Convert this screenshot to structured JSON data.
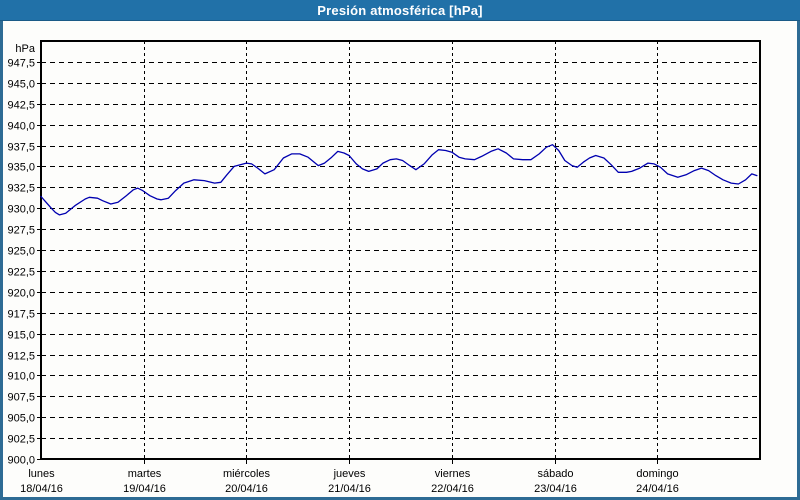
{
  "window": {
    "title": "Presión atmosférica [hPa]"
  },
  "colors": {
    "titlebar": "#2171a8",
    "frame": "#2e6b94",
    "plot_background": "#fdfdfb",
    "axis": "#000000",
    "grid": "#000000",
    "line": "#0000b0",
    "label_text": "#000000",
    "title_text": "#ffffff"
  },
  "chart_data": {
    "type": "line",
    "title": "Presión atmosférica [hPa]",
    "unit_label": "hPa",
    "ylabel": "hPa",
    "ylim": [
      900,
      950
    ],
    "ytick_step": 2.5,
    "grid": true,
    "legend": false,
    "yticks": [
      {
        "label": "947,5",
        "value": 947.5
      },
      {
        "label": "945,0",
        "value": 945.0
      },
      {
        "label": "942,5",
        "value": 942.5
      },
      {
        "label": "940,0",
        "value": 940.0
      },
      {
        "label": "937,5",
        "value": 937.5
      },
      {
        "label": "935,0",
        "value": 935.0
      },
      {
        "label": "932,5",
        "value": 932.5
      },
      {
        "label": "930,0",
        "value": 930.0
      },
      {
        "label": "927,5",
        "value": 927.5
      },
      {
        "label": "925,0",
        "value": 925.0
      },
      {
        "label": "922,5",
        "value": 922.5
      },
      {
        "label": "920,0",
        "value": 920.0
      },
      {
        "label": "917,5",
        "value": 917.5
      },
      {
        "label": "915,0",
        "value": 915.0
      },
      {
        "label": "912,5",
        "value": 912.5
      },
      {
        "label": "910,0",
        "value": 910.0
      },
      {
        "label": "907,5",
        "value": 907.5
      },
      {
        "label": "905,0",
        "value": 905.0
      },
      {
        "label": "902,5",
        "value": 902.5
      },
      {
        "label": "900,0",
        "value": 900.0
      }
    ],
    "x_categories": [
      {
        "day": "lunes",
        "date": "18/04/16"
      },
      {
        "day": "martes",
        "date": "19/04/16"
      },
      {
        "day": "miércoles",
        "date": "20/04/16"
      },
      {
        "day": "jueves",
        "date": "21/04/16"
      },
      {
        "day": "viernes",
        "date": "22/04/16"
      },
      {
        "day": "sábado",
        "date": "23/04/16"
      },
      {
        "day": "domingo",
        "date": "24/04/16"
      }
    ],
    "series": [
      {
        "name": "Presión atmosférica",
        "color": "#0000b0",
        "points": [
          [
            0.0,
            931.4
          ],
          [
            0.05,
            930.7
          ],
          [
            0.1,
            930.0
          ],
          [
            0.14,
            929.5
          ],
          [
            0.18,
            929.2
          ],
          [
            0.24,
            929.4
          ],
          [
            0.33,
            930.3
          ],
          [
            0.43,
            931.1
          ],
          [
            0.47,
            931.3
          ],
          [
            0.55,
            931.2
          ],
          [
            0.6,
            930.9
          ],
          [
            0.68,
            930.5
          ],
          [
            0.75,
            930.7
          ],
          [
            0.83,
            931.5
          ],
          [
            0.9,
            932.2
          ],
          [
            0.94,
            932.4
          ],
          [
            0.99,
            932.1
          ],
          [
            1.06,
            931.5
          ],
          [
            1.13,
            931.1
          ],
          [
            1.17,
            931.0
          ],
          [
            1.24,
            931.2
          ],
          [
            1.31,
            932.1
          ],
          [
            1.39,
            933.0
          ],
          [
            1.49,
            933.4
          ],
          [
            1.59,
            933.3
          ],
          [
            1.69,
            933.0
          ],
          [
            1.75,
            933.1
          ],
          [
            1.81,
            934.0
          ],
          [
            1.88,
            935.0
          ],
          [
            1.94,
            935.2
          ],
          [
            2.0,
            935.4
          ],
          [
            2.05,
            935.3
          ],
          [
            2.11,
            934.8
          ],
          [
            2.18,
            934.1
          ],
          [
            2.27,
            934.6
          ],
          [
            2.36,
            936.0
          ],
          [
            2.44,
            936.5
          ],
          [
            2.52,
            936.5
          ],
          [
            2.6,
            936.1
          ],
          [
            2.66,
            935.5
          ],
          [
            2.7,
            935.1
          ],
          [
            2.76,
            935.4
          ],
          [
            2.83,
            936.1
          ],
          [
            2.89,
            936.8
          ],
          [
            2.95,
            936.6
          ],
          [
            3.0,
            936.3
          ],
          [
            3.07,
            935.3
          ],
          [
            3.13,
            934.7
          ],
          [
            3.19,
            934.4
          ],
          [
            3.27,
            934.7
          ],
          [
            3.33,
            935.4
          ],
          [
            3.4,
            935.8
          ],
          [
            3.46,
            935.9
          ],
          [
            3.52,
            935.7
          ],
          [
            3.59,
            935.1
          ],
          [
            3.65,
            934.6
          ],
          [
            3.73,
            935.3
          ],
          [
            3.81,
            936.4
          ],
          [
            3.87,
            937.0
          ],
          [
            3.94,
            936.9
          ],
          [
            4.0,
            936.7
          ],
          [
            4.07,
            936.1
          ],
          [
            4.13,
            935.9
          ],
          [
            4.22,
            935.8
          ],
          [
            4.29,
            936.2
          ],
          [
            4.38,
            936.8
          ],
          [
            4.45,
            937.1
          ],
          [
            4.53,
            936.6
          ],
          [
            4.6,
            935.9
          ],
          [
            4.69,
            935.8
          ],
          [
            4.77,
            935.8
          ],
          [
            4.85,
            936.5
          ],
          [
            4.92,
            937.3
          ],
          [
            4.98,
            937.6
          ],
          [
            5.04,
            936.9
          ],
          [
            5.1,
            935.7
          ],
          [
            5.17,
            935.1
          ],
          [
            5.22,
            934.9
          ],
          [
            5.28,
            935.5
          ],
          [
            5.34,
            936.0
          ],
          [
            5.4,
            936.3
          ],
          [
            5.48,
            936.0
          ],
          [
            5.55,
            935.2
          ],
          [
            5.62,
            934.3
          ],
          [
            5.7,
            934.3
          ],
          [
            5.75,
            934.4
          ],
          [
            5.83,
            934.8
          ],
          [
            5.91,
            935.4
          ],
          [
            5.97,
            935.3
          ],
          [
            6.03,
            934.9
          ],
          [
            6.1,
            934.1
          ],
          [
            6.2,
            933.7
          ],
          [
            6.28,
            934.0
          ],
          [
            6.36,
            934.5
          ],
          [
            6.43,
            934.8
          ],
          [
            6.5,
            934.5
          ],
          [
            6.57,
            933.9
          ],
          [
            6.64,
            933.4
          ],
          [
            6.72,
            933.0
          ],
          [
            6.79,
            932.9
          ],
          [
            6.86,
            933.4
          ],
          [
            6.92,
            934.1
          ],
          [
            6.97,
            933.9
          ]
        ]
      }
    ]
  }
}
